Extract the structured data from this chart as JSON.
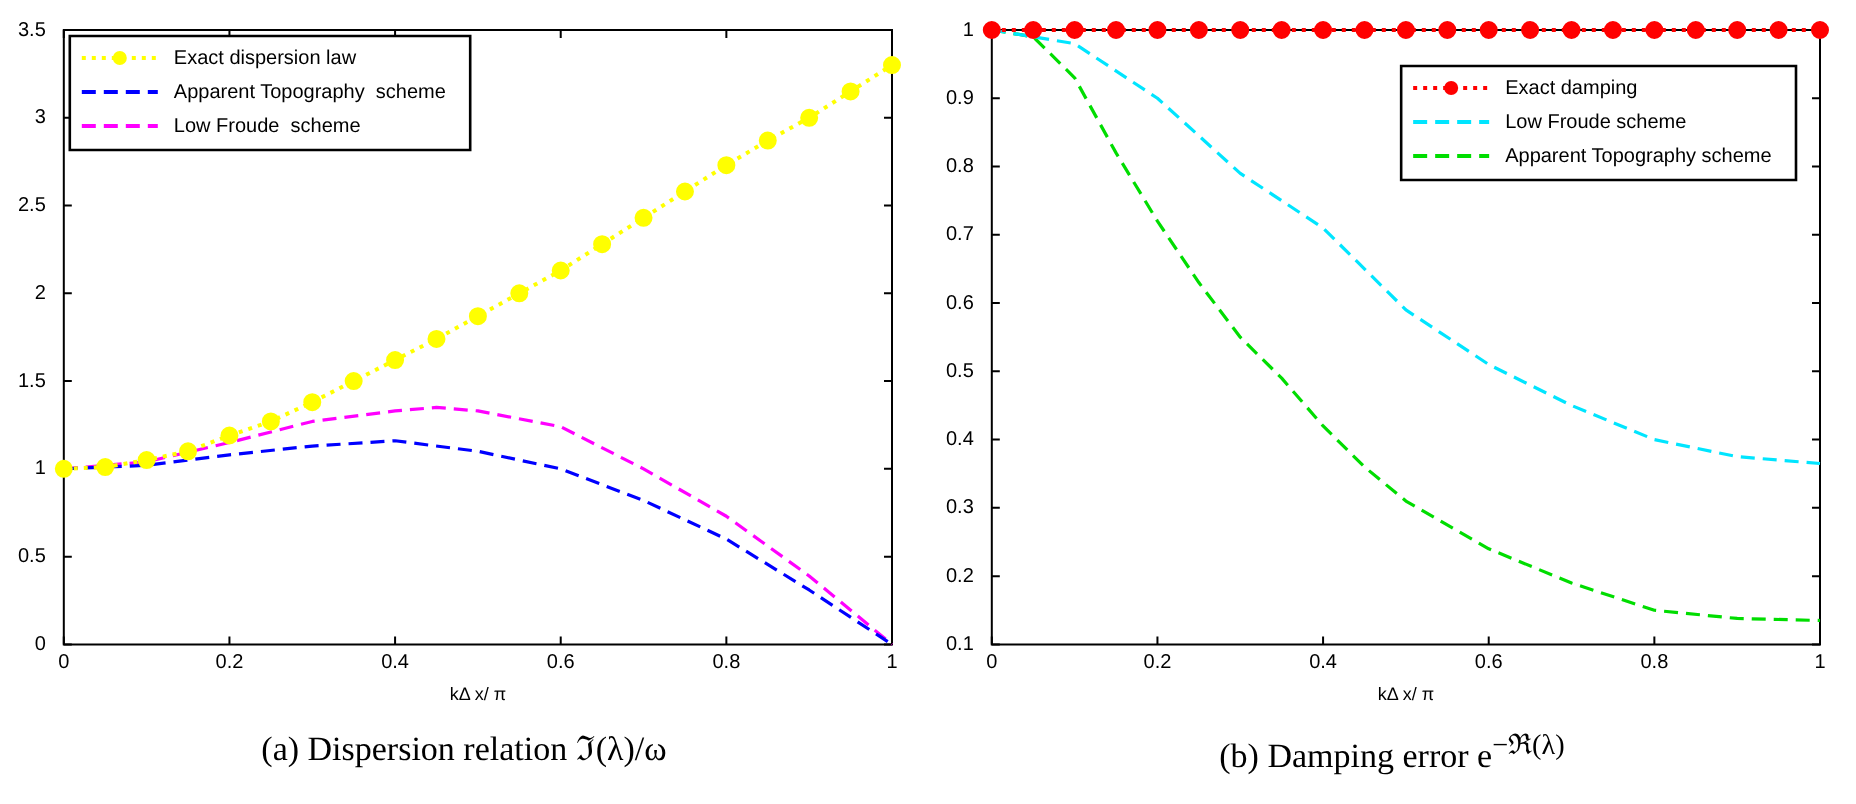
{
  "chart_data": [
    {
      "type": "line",
      "title": "(a)  Dispersion relation ℑ(λ)/ω",
      "xlabel": "kΔ x/ π",
      "xlim": [
        0,
        1
      ],
      "xticks": [
        0,
        0.2,
        0.4,
        0.6,
        0.8,
        1
      ],
      "ylim": [
        0,
        3.5
      ],
      "yticks": [
        0,
        0.5,
        1,
        1.5,
        2,
        2.5,
        3,
        3.5
      ],
      "grid": false,
      "legend": "top left",
      "series": [
        {
          "name": "Exact dispersion law",
          "color": "#ffff00",
          "marker": "circle",
          "line_style": "dotted",
          "x": [
            0,
            0.05,
            0.1,
            0.15,
            0.2,
            0.25,
            0.3,
            0.35,
            0.4,
            0.45,
            0.5,
            0.55,
            0.6,
            0.65,
            0.7,
            0.75,
            0.8,
            0.85,
            0.9,
            0.95,
            1
          ],
          "values": [
            1,
            1.01,
            1.05,
            1.1,
            1.19,
            1.27,
            1.38,
            1.5,
            1.62,
            1.74,
            1.87,
            2.0,
            2.13,
            2.28,
            2.43,
            2.58,
            2.73,
            2.87,
            3.0,
            3.15,
            3.3
          ]
        },
        {
          "name": "Apparent Topography  scheme",
          "color": "#0000ff",
          "marker": "none",
          "line_style": "dashed",
          "x": [
            0,
            0.1,
            0.2,
            0.3,
            0.4,
            0.5,
            0.6,
            0.7,
            0.8,
            0.9,
            1
          ],
          "values": [
            1,
            1.02,
            1.08,
            1.13,
            1.16,
            1.1,
            1.0,
            0.82,
            0.6,
            0.31,
            0
          ]
        },
        {
          "name": "Low Froude  scheme",
          "color": "#ff00ff",
          "marker": "none",
          "line_style": "dashed",
          "x": [
            0,
            0.1,
            0.2,
            0.3,
            0.4,
            0.45,
            0.5,
            0.6,
            0.7,
            0.8,
            0.9,
            1
          ],
          "values": [
            1,
            1.04,
            1.15,
            1.27,
            1.33,
            1.35,
            1.33,
            1.24,
            1.0,
            0.73,
            0.39,
            0
          ]
        }
      ]
    },
    {
      "type": "line",
      "title": "(b)  Damping error e$^{−ℜ(λ)}$",
      "xlabel": "kΔ x/ π",
      "xlim": [
        0,
        1
      ],
      "xticks": [
        0,
        0.2,
        0.4,
        0.6,
        0.8,
        1
      ],
      "ylim": [
        0.1,
        1
      ],
      "yticks": [
        0.1,
        0.2,
        0.3,
        0.4,
        0.5,
        0.6,
        0.7,
        0.8,
        0.9,
        1
      ],
      "grid": false,
      "legend": "top right",
      "series": [
        {
          "name": "Exact damping",
          "color": "#ff0000",
          "marker": "circle",
          "line_style": "dotted",
          "x": [
            0,
            0.05,
            0.1,
            0.15,
            0.2,
            0.25,
            0.3,
            0.35,
            0.4,
            0.45,
            0.5,
            0.55,
            0.6,
            0.65,
            0.7,
            0.75,
            0.8,
            0.85,
            0.9,
            0.95,
            1
          ],
          "values": [
            1,
            1,
            1,
            1,
            1,
            1,
            1,
            1,
            1,
            1,
            1,
            1,
            1,
            1,
            1,
            1,
            1,
            1,
            1,
            1,
            1
          ]
        },
        {
          "name": "Low Froude scheme",
          "color": "#00e5ff",
          "marker": "none",
          "line_style": "dashed",
          "x": [
            0,
            0.1,
            0.2,
            0.3,
            0.4,
            0.5,
            0.6,
            0.7,
            0.8,
            0.9,
            1
          ],
          "values": [
            1,
            0.98,
            0.9,
            0.79,
            0.71,
            0.59,
            0.51,
            0.45,
            0.4,
            0.375,
            0.365
          ]
        },
        {
          "name": "Apparent Topography scheme",
          "color": "#00dd00",
          "marker": "none",
          "line_style": "dashed",
          "x": [
            0,
            0.05,
            0.1,
            0.15,
            0.2,
            0.25,
            0.3,
            0.35,
            0.4,
            0.45,
            0.5,
            0.6,
            0.7,
            0.8,
            0.9,
            1
          ],
          "values": [
            1,
            0.99,
            0.93,
            0.82,
            0.72,
            0.63,
            0.55,
            0.49,
            0.42,
            0.36,
            0.31,
            0.24,
            0.19,
            0.15,
            0.138,
            0.135
          ]
        }
      ]
    }
  ]
}
